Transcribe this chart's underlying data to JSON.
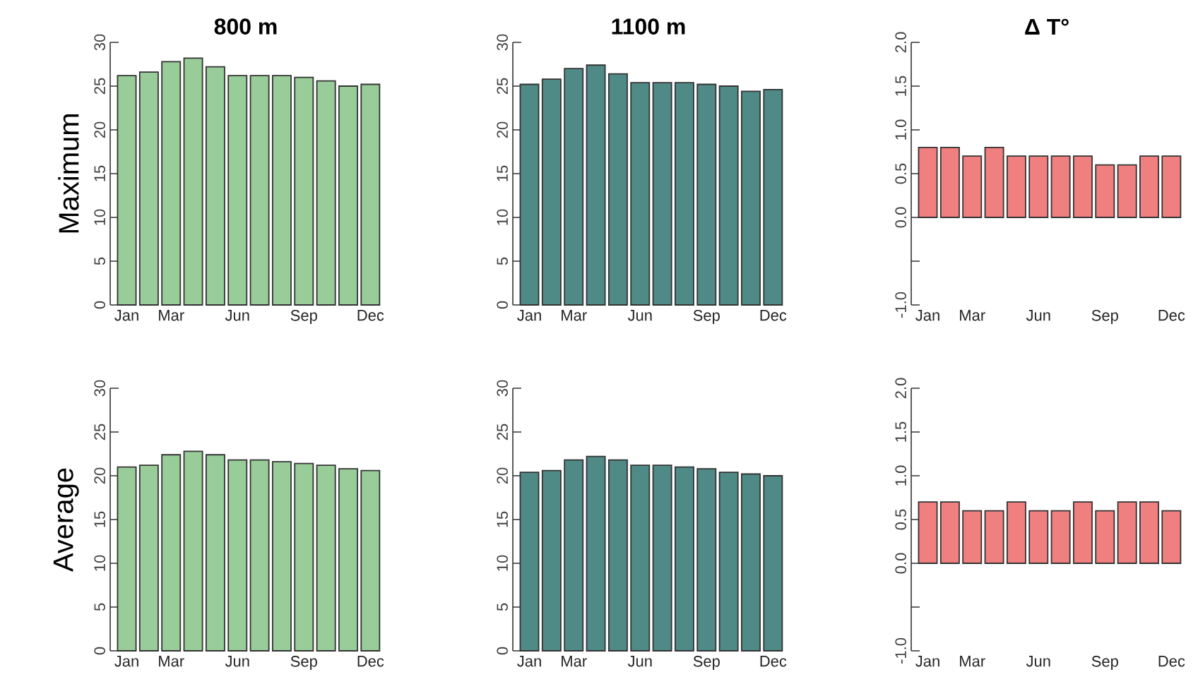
{
  "chart_data": [
    {
      "type": "bar",
      "title": "800 m",
      "ylabel": "Maximum",
      "categories": [
        "Jan",
        null,
        "Mar",
        null,
        null,
        "Jun",
        null,
        null,
        "Sep",
        null,
        null,
        "Dec"
      ],
      "values": [
        26.2,
        26.6,
        27.8,
        28.2,
        27.2,
        26.2,
        26.2,
        26.2,
        26.0,
        25.6,
        25.0,
        25.2
      ],
      "color": "#98cc98",
      "ylim": [
        0,
        30
      ],
      "yticks": [
        0,
        5,
        10,
        15,
        20,
        25,
        30
      ]
    },
    {
      "type": "bar",
      "title": "1100 m",
      "categories": [
        "Jan",
        null,
        "Mar",
        null,
        null,
        "Jun",
        null,
        null,
        "Sep",
        null,
        null,
        "Dec"
      ],
      "values": [
        25.2,
        25.8,
        27.0,
        27.4,
        26.4,
        25.4,
        25.4,
        25.4,
        25.2,
        25.0,
        24.4,
        24.6
      ],
      "color": "#4f8a87",
      "ylim": [
        0,
        30
      ],
      "yticks": [
        0,
        5,
        10,
        15,
        20,
        25,
        30
      ]
    },
    {
      "type": "bar",
      "title": "Δ T°",
      "categories": [
        "Jan",
        null,
        "Mar",
        null,
        null,
        "Jun",
        null,
        null,
        "Sep",
        null,
        null,
        "Dec"
      ],
      "values": [
        0.8,
        0.8,
        0.7,
        0.8,
        0.7,
        0.7,
        0.7,
        0.7,
        0.6,
        0.6,
        0.7,
        0.7
      ],
      "color": "#f08080",
      "ylim": [
        -1,
        2
      ],
      "yticks": [
        {
          "value": -1,
          "label": "-1.0"
        },
        {
          "value": -0.5,
          "label": null
        },
        {
          "value": 0,
          "label": "0.0"
        },
        {
          "value": 0.5,
          "label": "0.5"
        },
        {
          "value": 1,
          "label": "1.0"
        },
        {
          "value": 1.5,
          "label": "1.5"
        },
        {
          "value": 2,
          "label": "2.0"
        }
      ]
    },
    {
      "type": "bar",
      "ylabel": "Average",
      "categories": [
        "Jan",
        null,
        "Mar",
        null,
        null,
        "Jun",
        null,
        null,
        "Sep",
        null,
        null,
        "Dec"
      ],
      "values": [
        21.0,
        21.2,
        22.4,
        22.8,
        22.4,
        21.8,
        21.8,
        21.6,
        21.4,
        21.2,
        20.8,
        20.6
      ],
      "color": "#98cc98",
      "ylim": [
        0,
        30
      ],
      "yticks": [
        0,
        5,
        10,
        15,
        20,
        25,
        30
      ]
    },
    {
      "type": "bar",
      "categories": [
        "Jan",
        null,
        "Mar",
        null,
        null,
        "Jun",
        null,
        null,
        "Sep",
        null,
        null,
        "Dec"
      ],
      "values": [
        20.4,
        20.6,
        21.8,
        22.2,
        21.8,
        21.2,
        21.2,
        21.0,
        20.8,
        20.4,
        20.2,
        20.0
      ],
      "color": "#4f8a87",
      "ylim": [
        0,
        30
      ],
      "yticks": [
        0,
        5,
        10,
        15,
        20,
        25,
        30
      ]
    },
    {
      "type": "bar",
      "categories": [
        "Jan",
        null,
        "Mar",
        null,
        null,
        "Jun",
        null,
        null,
        "Sep",
        null,
        null,
        "Dec"
      ],
      "values": [
        0.7,
        0.7,
        0.6,
        0.6,
        0.7,
        0.6,
        0.6,
        0.7,
        0.6,
        0.7,
        0.7,
        0.6
      ],
      "color": "#f08080",
      "ylim": [
        -1,
        2
      ],
      "yticks": [
        {
          "value": -1,
          "label": "-1.0"
        },
        {
          "value": -0.5,
          "label": null
        },
        {
          "value": 0,
          "label": "0.0"
        },
        {
          "value": 0.5,
          "label": "0.5"
        },
        {
          "value": 1,
          "label": "1.0"
        },
        {
          "value": 1.5,
          "label": "1.5"
        },
        {
          "value": 2,
          "label": "2.0"
        }
      ]
    }
  ]
}
